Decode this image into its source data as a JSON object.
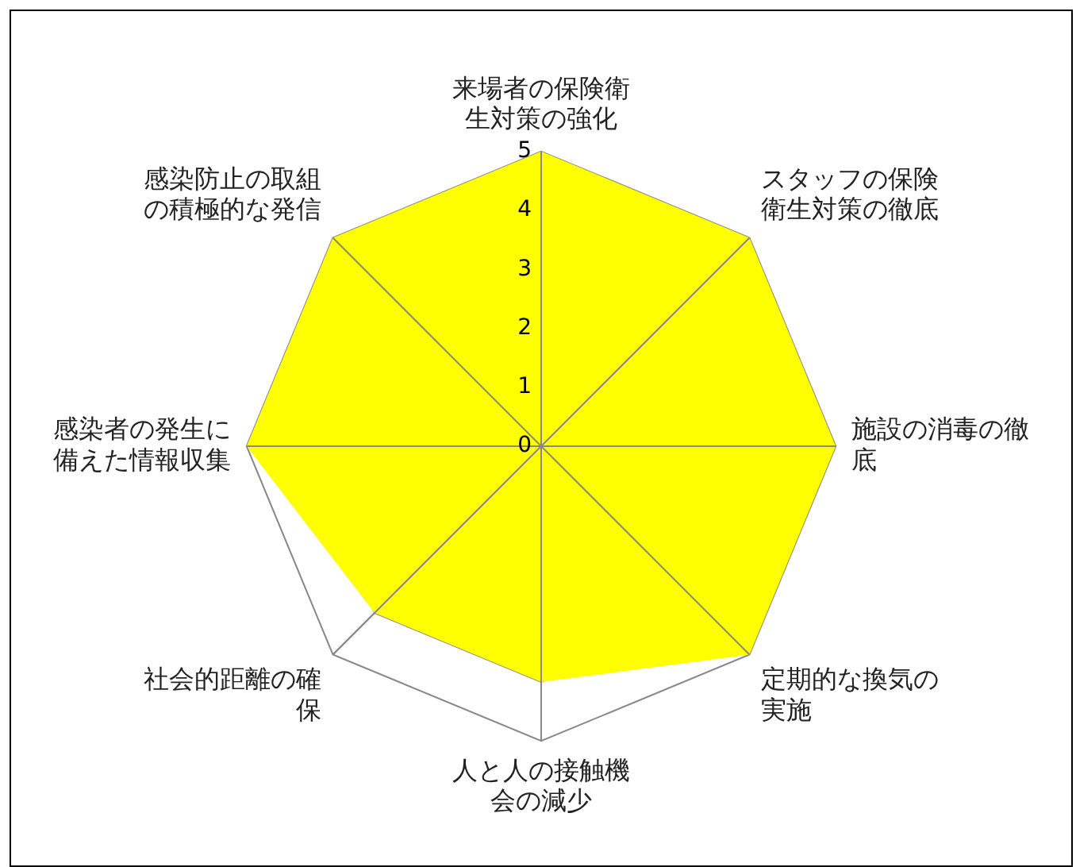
{
  "chart_data": {
    "type": "radar",
    "categories": [
      "来場者の保険衛生対策の強化",
      "スタッフの保険衛生対策の徹底",
      "施設の消毒の徹底",
      "定期的な換気の実施",
      "人と人の接触機会の減少",
      "社会的距離の確保",
      "感染者の発生に備えた情報収集",
      "感染防止の取組の積極的な発信"
    ],
    "series": [
      {
        "color": "#ffff00",
        "values": [
          5,
          5,
          5,
          5,
          4,
          4,
          5,
          5
        ]
      }
    ],
    "ylim": [
      0,
      5
    ],
    "yticks": [
      0,
      1,
      2,
      3,
      4,
      5
    ],
    "grid": true,
    "legend": false
  }
}
